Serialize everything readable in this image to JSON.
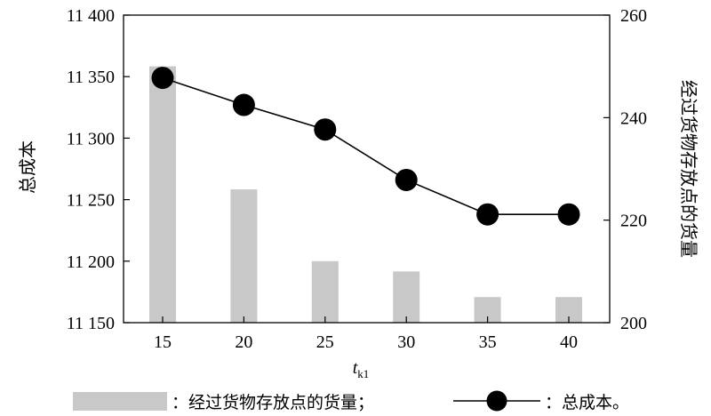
{
  "chart_data": {
    "type": "bar+line",
    "x": [
      15,
      20,
      25,
      30,
      35,
      40
    ],
    "bar_series": {
      "name": "经过货物存放点的货量",
      "axis": "right",
      "values": [
        250,
        226,
        212,
        210,
        205,
        205
      ],
      "color": "#c8c8c8"
    },
    "line_series": {
      "name": "总成本",
      "axis": "left",
      "values": [
        11349,
        11327,
        11307,
        11266,
        11238,
        11238
      ],
      "color": "#000000"
    },
    "left_axis": {
      "label": "总成本",
      "ylim": [
        11150,
        11400
      ],
      "ticks": [
        11150,
        11200,
        11250,
        11300,
        11350,
        11400
      ],
      "tick_labels": [
        "11 150",
        "11 200",
        "11 250",
        "11 300",
        "11 350",
        "11 400"
      ]
    },
    "right_axis": {
      "label": "经过货物存放点的货量",
      "ylim": [
        200,
        260
      ],
      "ticks": [
        200,
        220,
        240,
        260
      ],
      "tick_labels": [
        "200",
        "220",
        "240",
        "260"
      ]
    },
    "x_axis": {
      "label_main": "t",
      "label_sub": "k1",
      "tick_labels": [
        "15",
        "20",
        "25",
        "30",
        "35",
        "40"
      ]
    },
    "grid": false,
    "legend": {
      "position": "bottom",
      "items": [
        {
          "type": "bar",
          "text": "：经过货物存放点的货量；"
        },
        {
          "type": "line",
          "text": "：总成本。"
        }
      ]
    }
  }
}
